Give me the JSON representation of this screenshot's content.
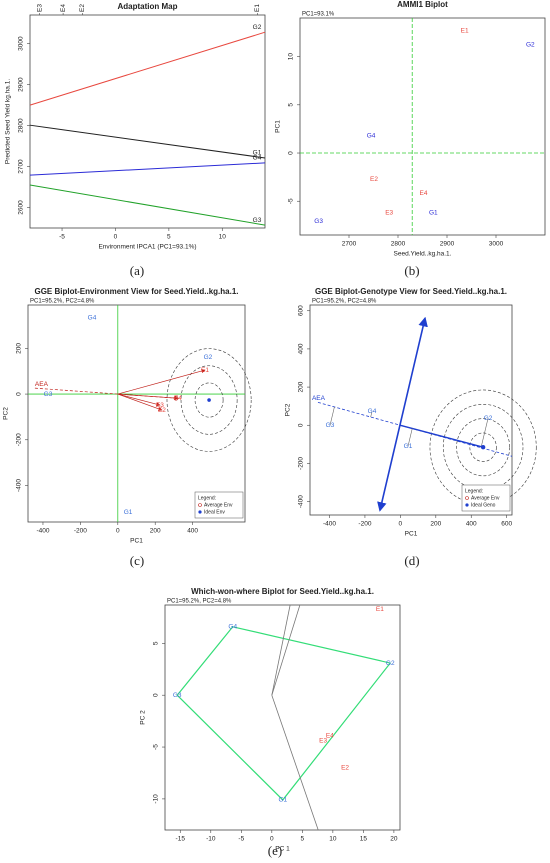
{
  "chart_data": [
    {
      "type": "line",
      "title": "Adaptation Map",
      "xlabel": "Environment IPCA1 (PC1=93.1%)",
      "ylabel": "Predicted Seed Yield kg.ha.1.",
      "caption": "(a)",
      "x": [
        -8,
        14
      ],
      "series": [
        {
          "name": "G2",
          "color": "#e8483f",
          "values": [
            2850,
            3028
          ]
        },
        {
          "name": "G1",
          "color": "#222222",
          "values": [
            2801,
            2721
          ]
        },
        {
          "name": "G4",
          "color": "#2b2bd6",
          "values": [
            2679,
            2709
          ]
        },
        {
          "name": "G3",
          "color": "#22a22a",
          "values": [
            2655,
            2557
          ]
        }
      ],
      "environments": [
        {
          "label": "E3",
          "x": -7.1
        },
        {
          "label": "E4",
          "x": -4.9
        },
        {
          "label": "E2",
          "x": -3.1
        },
        {
          "label": "E1",
          "x": 13.3
        }
      ],
      "xlim": [
        -8,
        14
      ],
      "ylim": [
        2550,
        3070
      ],
      "xticks": [
        -5,
        0,
        5,
        10
      ],
      "yticks": [
        2600,
        2700,
        2800,
        2900,
        3000
      ]
    },
    {
      "type": "scatter",
      "title": "AMMI1 Biplot",
      "subtitle": "PC1=93.1%",
      "xlabel": "Seed.Yield..kg.ha.1.",
      "ylabel": "PC1",
      "caption": "(b)",
      "environment_color": "#e8483f",
      "genotype_color": "#2b2bd6",
      "environments": [
        {
          "label": "E1",
          "x": 2936,
          "y": 12.7
        },
        {
          "label": "E2",
          "x": 2751,
          "y": -2.7
        },
        {
          "label": "E3",
          "x": 2782,
          "y": -6.2
        },
        {
          "label": "E4",
          "x": 2852,
          "y": -4.2
        }
      ],
      "genotypes": [
        {
          "label": "G1",
          "x": 2872,
          "y": -6.2
        },
        {
          "label": "G2",
          "x": 3070,
          "y": 11.2
        },
        {
          "label": "G3",
          "x": 2638,
          "y": -7.1
        },
        {
          "label": "G4",
          "x": 2745,
          "y": 1.8
        }
      ],
      "reference_lines": {
        "x": 2829,
        "y": 0,
        "color": "#33cc33"
      },
      "xlim": [
        2600,
        3100
      ],
      "ylim": [
        -8.5,
        14
      ],
      "xticks": [
        2700,
        2800,
        2900,
        3000
      ],
      "yticks": [
        -5,
        0,
        5,
        10
      ]
    },
    {
      "type": "biplot",
      "view": "environment",
      "title": "GGE Biplot-Environment View for Seed.Yield..kg.ha.1.",
      "subtitle": "PC1=95.2%, PC2=4.8%",
      "xlabel": "PC1",
      "ylabel": "PC2",
      "caption": "(c)",
      "environment_color": "#e8483f",
      "genotype_color": "#3a6fd8",
      "origin_axes": "#33cc33",
      "environments": [
        {
          "label": "E1",
          "x": 466,
          "y": 105
        },
        {
          "label": "E2",
          "x": 236,
          "y": -70
        },
        {
          "label": "E3",
          "x": 225,
          "y": -48
        },
        {
          "label": "E4",
          "x": 321,
          "y": -18
        }
      ],
      "genotypes": [
        {
          "label": "G1",
          "x": 55,
          "y": -517
        },
        {
          "label": "G2",
          "x": 482,
          "y": 162
        },
        {
          "label": "G3",
          "x": -373,
          "y": 0
        },
        {
          "label": "G4",
          "x": -138,
          "y": 333
        }
      ],
      "average_env": {
        "x": 311,
        "y": -18
      },
      "ideal": {
        "x": 488,
        "y": -26
      },
      "aea": {
        "label": "AEA",
        "x": -443,
        "y": 26
      },
      "circle_radii": [
        75,
        150,
        225
      ],
      "legend": {
        "title": "Legend:",
        "entries": [
          "Average Env",
          "Ideal Env"
        ]
      },
      "xlim": [
        -480,
        680
      ],
      "ylim": [
        -560,
        390
      ],
      "xticks": [
        -400,
        -200,
        0,
        200,
        400
      ],
      "yticks": [
        -400,
        -200,
        0,
        200
      ]
    },
    {
      "type": "biplot",
      "view": "genotype",
      "title": "GGE Biplot-Genotype View for Seed.Yield..kg.ha.1.",
      "subtitle": "PC1=95.2%, PC2=4.8%",
      "xlabel": "PC1",
      "ylabel": "PC2",
      "caption": "(d)",
      "genotype_color": "#3a6fd8",
      "axis_color": "#1f3fcf",
      "genotypes": [
        {
          "label": "G1",
          "x": 43,
          "y": -110
        },
        {
          "label": "G2",
          "x": 495,
          "y": 37
        },
        {
          "label": "G3",
          "x": -397,
          "y": 0
        },
        {
          "label": "G4",
          "x": -160,
          "y": 73
        }
      ],
      "ideal": {
        "x": 467,
        "y": -115
      },
      "aea": {
        "label": "AEA",
        "x": -465,
        "y": 120
      },
      "axis_ends": [
        {
          "x": 139,
          "y": 560
        },
        {
          "x": -115,
          "y": -445
        }
      ],
      "circle_radii": [
        75,
        150,
        225,
        300
      ],
      "legend": {
        "title": "Legend:",
        "entries": [
          "Average Env",
          "Ideal Geno"
        ]
      },
      "xlim": [
        -510,
        630
      ],
      "ylim": [
        -470,
        630
      ],
      "xticks": [
        -400,
        -200,
        0,
        200,
        400,
        600
      ],
      "yticks": [
        -400,
        -200,
        0,
        200,
        400,
        600
      ]
    },
    {
      "type": "biplot",
      "view": "which-won-where",
      "title": "Which-won-where Biplot for Seed.Yield..kg.ha.1.",
      "subtitle": "PC1=95.2%, PC2=4.8%",
      "xlabel": "PC 1",
      "ylabel": "PC 2",
      "caption": "(e)",
      "environment_color": "#e8483f",
      "genotype_color": "#3a6fd8",
      "polygon_color": "#33dd77",
      "sector_color": "#777777",
      "genotypes": [
        {
          "label": "G4",
          "x": -6.4,
          "y": 6.6
        },
        {
          "label": "G2",
          "x": 19.4,
          "y": 3.1
        },
        {
          "label": "G1",
          "x": 1.8,
          "y": -10.1
        },
        {
          "label": "G3",
          "x": -15.5,
          "y": 0
        }
      ],
      "environments": [
        {
          "label": "E1",
          "x": 17.7,
          "y": 8.3
        },
        {
          "label": "E2",
          "x": 12,
          "y": -7
        },
        {
          "label": "E3",
          "x": 8.4,
          "y": -4.4
        },
        {
          "label": "E4",
          "x": 9.5,
          "y": -3.9
        }
      ],
      "sector_lines": [
        {
          "x": 4.6,
          "y": 8.7
        },
        {
          "x": 3,
          "y": 8.7
        },
        {
          "x": 7.6,
          "y": -13
        }
      ],
      "xlim": [
        -17.5,
        21
      ],
      "ylim": [
        -13,
        8.7
      ],
      "xticks": [
        -15,
        -10,
        -5,
        0,
        5,
        10,
        15,
        20
      ],
      "yticks": [
        -10,
        -5,
        0,
        5
      ]
    }
  ]
}
